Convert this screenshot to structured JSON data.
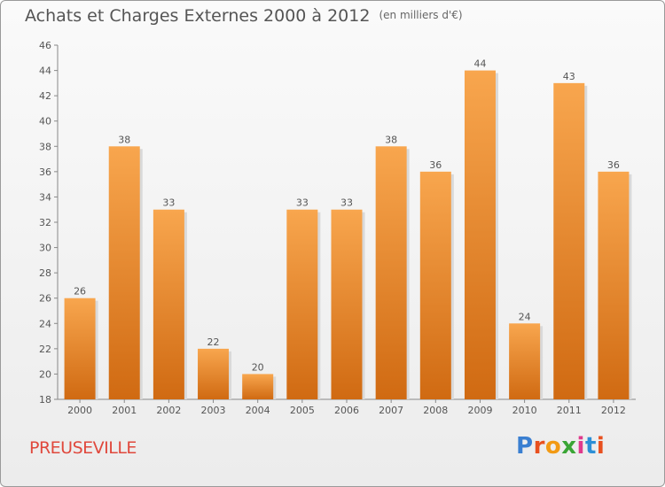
{
  "title": "Achats et Charges Externes 2000 à 2012",
  "subtitle": "(en milliers d'€)",
  "commune": "PREUSEVILLE",
  "logo": {
    "text": "Proxiti",
    "colors": [
      "#3a7fd1",
      "#e8501f",
      "#f29a14",
      "#3aa535",
      "#e03a8c",
      "#2c8fd6",
      "#e8501f"
    ]
  },
  "colors": {
    "bar": "#f0922a",
    "bar_dark": "#cf6a12",
    "commune": "#e0483c",
    "text": "#555555"
  },
  "chart_data": {
    "type": "bar",
    "categories": [
      "2000",
      "2001",
      "2002",
      "2003",
      "2004",
      "2005",
      "2006",
      "2007",
      "2008",
      "2009",
      "2010",
      "2011",
      "2012"
    ],
    "values": [
      26,
      38,
      33,
      22,
      20,
      33,
      33,
      38,
      36,
      44,
      24,
      43,
      36
    ],
    "ylim": [
      18,
      46
    ],
    "yticks": [
      18,
      20,
      22,
      24,
      26,
      28,
      30,
      32,
      34,
      36,
      38,
      40,
      42,
      44,
      46
    ],
    "grid": false,
    "data_labels": true
  }
}
